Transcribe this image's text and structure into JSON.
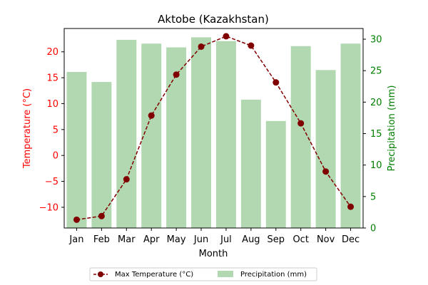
{
  "chart_data": {
    "type": "bar+line",
    "title": "Aktobe (Kazakhstan)",
    "xlabel": "Month",
    "ylabel_left": "Temperature (°C)",
    "ylabel_right": "Precipitation (mm)",
    "categories": [
      "Jan",
      "Feb",
      "Mar",
      "Apr",
      "May",
      "Jun",
      "Jul",
      "Aug",
      "Sep",
      "Oct",
      "Nov",
      "Dec"
    ],
    "left_axis": {
      "ylim": [
        -14,
        24.5
      ],
      "ticks": [
        -10,
        -5,
        0,
        5,
        10,
        15,
        20
      ],
      "tick_labels": [
        "−10",
        "−5",
        "0",
        "5",
        "10",
        "15",
        "20"
      ]
    },
    "right_axis": {
      "ylim": [
        0,
        31.7
      ],
      "ticks": [
        0,
        5,
        10,
        15,
        20,
        25,
        30
      ]
    },
    "series": [
      {
        "name": "Max Temperature (°C)",
        "kind": "line",
        "axis": "left",
        "values": [
          -12.4,
          -11.7,
          -4.6,
          7.7,
          15.6,
          21.0,
          23.0,
          21.2,
          14.1,
          6.2,
          -3.1,
          -9.9
        ]
      },
      {
        "name": "Precipitation (mm)",
        "kind": "bar",
        "axis": "right",
        "values": [
          24.8,
          23.2,
          29.9,
          29.3,
          28.7,
          30.3,
          29.7,
          20.4,
          17.0,
          28.9,
          25.1,
          29.3
        ]
      }
    ],
    "legend_position": "bottom-center",
    "colors": {
      "temp_line": "#800000",
      "temp_axis": "#ff0000",
      "bars": "#b1d8b1",
      "precip_axis": "#008000",
      "text": "#000000"
    }
  }
}
